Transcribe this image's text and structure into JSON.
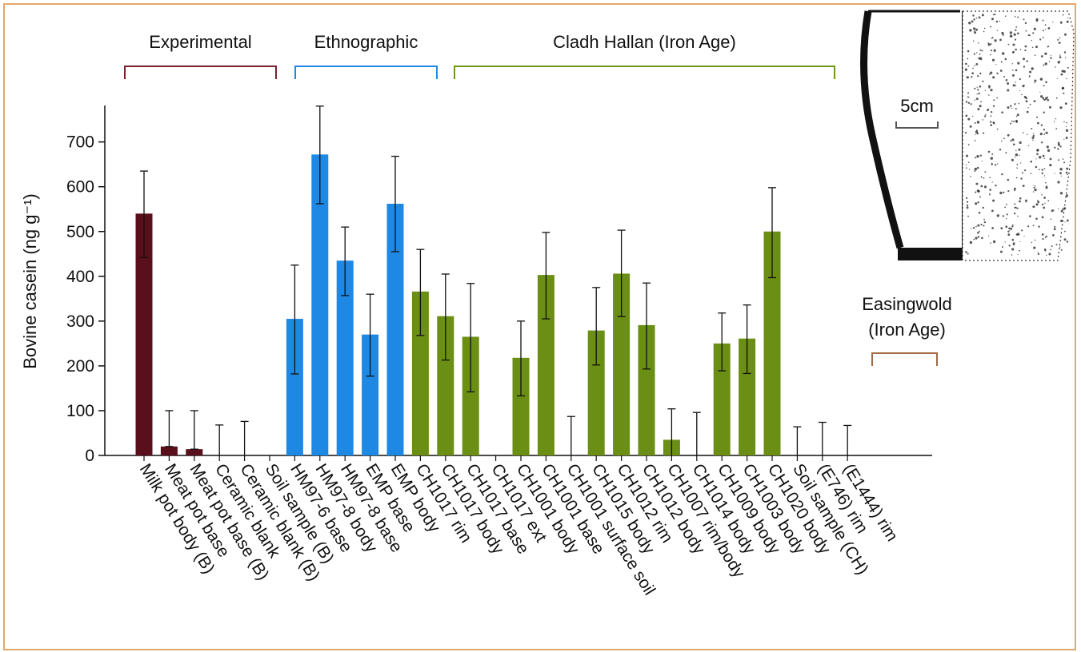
{
  "chart_data": {
    "type": "bar",
    "ylabel": "Bovine casein (ng g⁻¹)",
    "ylim": [
      0,
      780
    ],
    "yticks": [
      0,
      100,
      200,
      300,
      400,
      500,
      600,
      700
    ],
    "grid": false,
    "categories": [
      "Milk pot body (B)",
      "Meat pot base",
      "Meat pot base (B)",
      "Ceramic blank",
      "Ceramic blank (B)",
      "Soil sample (B)",
      "HM97-6 base",
      "HM97-8 body",
      "HM97-8 base",
      "EMP base",
      "EMP body",
      "CH1017 rim",
      "CH1017 body",
      "CH1017 base",
      "CH1017 ext",
      "CH1001 body",
      "CH1001 base",
      "CH1001 surface soil",
      "CH1015 body",
      "CH1012 rim",
      "CH1012 body",
      "CH1007 rim/body",
      "CH1014 body",
      "CH1009 body",
      "CH1003 body",
      "CH1020 body",
      "Soil sample (CH)",
      "(E746) rim",
      "(E1444) rim"
    ],
    "values": [
      540,
      20,
      14,
      0,
      0,
      null,
      305,
      672,
      435,
      270,
      562,
      366,
      311,
      265,
      null,
      218,
      403,
      null,
      279,
      406,
      291,
      35,
      null,
      250,
      261,
      500,
      null,
      null,
      null
    ],
    "error_high": [
      635,
      100,
      100,
      68,
      76,
      null,
      425,
      780,
      510,
      360,
      668,
      460,
      405,
      384,
      null,
      300,
      498,
      87,
      375,
      503,
      385,
      104,
      96,
      318,
      336,
      598,
      64,
      74,
      67
    ],
    "error_low": [
      442,
      20,
      14,
      0,
      0,
      null,
      182,
      562,
      357,
      177,
      455,
      268,
      213,
      142,
      null,
      133,
      305,
      0,
      202,
      310,
      193,
      0,
      0,
      189,
      183,
      397,
      0,
      0,
      0
    ],
    "groups": [
      {
        "label": "Experimental",
        "from": 0,
        "to": 5,
        "color": "#7a1f2b"
      },
      {
        "label": "Ethnographic",
        "from": 6,
        "to": 10,
        "color": "#1e88e5"
      },
      {
        "label": "Cladh Hallan (Iron Age)",
        "from": 11,
        "to": 25,
        "color": "#6b9a1a"
      },
      {
        "label": "Easingwold (Iron Age)",
        "label_lines": [
          "Easingwold",
          "(Iron Age)"
        ],
        "from": 27,
        "to": 28,
        "color": "#a26a45"
      }
    ],
    "series": [
      {
        "group": 0,
        "color": "#5a0f1c"
      },
      {
        "group": 1,
        "color": "#1e88e5"
      },
      {
        "group": 2,
        "color": "#6b8e14"
      },
      {
        "group": 3,
        "color": "#6b8e14"
      }
    ],
    "annotations": {
      "inset_scale_label": "5cm"
    }
  }
}
